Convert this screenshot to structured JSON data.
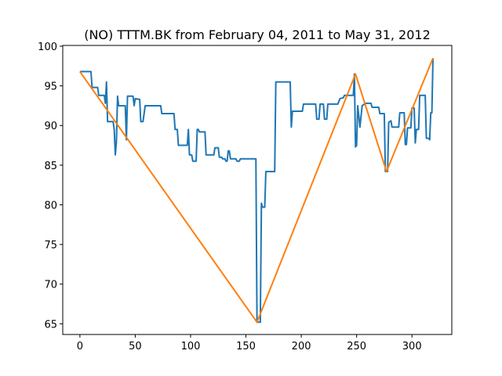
{
  "chart_data": {
    "type": "line",
    "title": "(NO) TTTM.BK from February 04, 2011 to May 31, 2012",
    "xlabel": "",
    "ylabel": "",
    "xlim": [
      -15.5,
      336
    ],
    "ylim": [
      63.65,
      100.1
    ],
    "x_ticks": [
      0,
      50,
      100,
      150,
      200,
      250,
      300
    ],
    "y_ticks": [
      65,
      70,
      75,
      80,
      85,
      90,
      95,
      100
    ],
    "grid": false,
    "legend": "none",
    "series": [
      {
        "color": "#1f77b4",
        "points": [
          [
            0,
            96.8
          ],
          [
            10,
            96.8
          ],
          [
            11,
            94.8
          ],
          [
            16,
            94.8
          ],
          [
            17,
            93.8
          ],
          [
            22,
            93.8
          ],
          [
            23,
            92.8
          ],
          [
            24,
            95.5
          ],
          [
            25,
            90.5
          ],
          [
            30,
            90.5
          ],
          [
            31,
            89.5
          ],
          [
            32,
            86.3
          ],
          [
            33,
            88.0
          ],
          [
            34,
            93.7
          ],
          [
            35,
            92.5
          ],
          [
            41,
            92.5
          ],
          [
            42,
            88.2
          ],
          [
            43,
            93.7
          ],
          [
            48,
            93.7
          ],
          [
            49,
            92.5
          ],
          [
            50,
            93.4
          ],
          [
            54,
            93.3
          ],
          [
            55,
            90.5
          ],
          [
            57,
            90.5
          ],
          [
            59,
            92.5
          ],
          [
            73,
            92.5
          ],
          [
            74,
            91.5
          ],
          [
            85,
            91.5
          ],
          [
            86,
            89.5
          ],
          [
            88,
            89.5
          ],
          [
            89,
            87.5
          ],
          [
            97,
            87.5
          ],
          [
            98,
            89.5
          ],
          [
            99,
            86.3
          ],
          [
            101,
            86.3
          ],
          [
            102,
            85.5
          ],
          [
            105,
            85.5
          ],
          [
            106,
            89.5
          ],
          [
            107,
            89.5
          ],
          [
            108,
            89.2
          ],
          [
            113,
            89.2
          ],
          [
            114,
            86.3
          ],
          [
            121,
            86.3
          ],
          [
            122,
            87.2
          ],
          [
            125,
            87.2
          ],
          [
            126,
            86.0
          ],
          [
            128,
            86.0
          ],
          [
            129,
            85.8
          ],
          [
            131,
            85.8
          ],
          [
            132,
            85.5
          ],
          [
            133,
            85.5
          ],
          [
            134,
            86.8
          ],
          [
            135,
            86.8
          ],
          [
            136,
            85.8
          ],
          [
            141,
            85.8
          ],
          [
            142,
            85.5
          ],
          [
            144,
            85.5
          ],
          [
            145,
            85.8
          ],
          [
            159,
            85.8
          ],
          [
            160,
            65.2
          ],
          [
            163,
            65.2
          ],
          [
            164,
            80.2
          ],
          [
            165,
            79.7
          ],
          [
            167,
            79.7
          ],
          [
            168,
            84.2
          ],
          [
            176,
            84.2
          ],
          [
            177,
            95.5
          ],
          [
            190,
            95.5
          ],
          [
            191,
            89.8
          ],
          [
            192,
            91.8
          ],
          [
            201,
            91.8
          ],
          [
            202,
            92.7
          ],
          [
            213,
            92.7
          ],
          [
            214,
            90.8
          ],
          [
            216,
            90.8
          ],
          [
            217,
            92.7
          ],
          [
            220,
            92.7
          ],
          [
            221,
            90.8
          ],
          [
            223,
            90.8
          ],
          [
            224,
            92.7
          ],
          [
            233,
            92.7
          ],
          [
            235,
            93.4
          ],
          [
            238,
            93.5
          ],
          [
            239,
            93.8
          ],
          [
            247,
            93.8
          ],
          [
            248,
            96.5
          ],
          [
            249,
            87.3
          ],
          [
            250,
            87.5
          ],
          [
            251,
            92.5
          ],
          [
            253,
            89.8
          ],
          [
            255,
            92.5
          ],
          [
            258,
            92.8
          ],
          [
            263,
            92.8
          ],
          [
            264,
            92.3
          ],
          [
            270,
            92.3
          ],
          [
            271,
            91.5
          ],
          [
            275,
            91.5
          ],
          [
            276,
            84.2
          ],
          [
            278,
            84.2
          ],
          [
            279,
            90.4
          ],
          [
            281,
            90.6
          ],
          [
            282,
            89.8
          ],
          [
            288,
            89.8
          ],
          [
            289,
            91.6
          ],
          [
            293,
            91.6
          ],
          [
            294,
            87.6
          ],
          [
            295,
            87.6
          ],
          [
            296,
            89.7
          ],
          [
            299,
            89.7
          ],
          [
            300,
            92.2
          ],
          [
            302,
            92.2
          ],
          [
            303,
            87.8
          ],
          [
            304,
            89.5
          ],
          [
            306,
            89.5
          ],
          [
            307,
            93.8
          ],
          [
            312,
            93.8
          ],
          [
            313,
            88.4
          ],
          [
            315,
            88.4
          ],
          [
            316,
            88.2
          ],
          [
            317,
            91.6
          ],
          [
            318,
            91.6
          ],
          [
            319,
            98.5
          ]
        ]
      },
      {
        "color": "#ff7f0e",
        "points": [
          [
            0,
            96.8
          ],
          [
            160,
            65.2
          ],
          [
            249,
            96.5
          ],
          [
            277,
            84.2
          ],
          [
            319,
            98.5
          ]
        ]
      }
    ]
  }
}
